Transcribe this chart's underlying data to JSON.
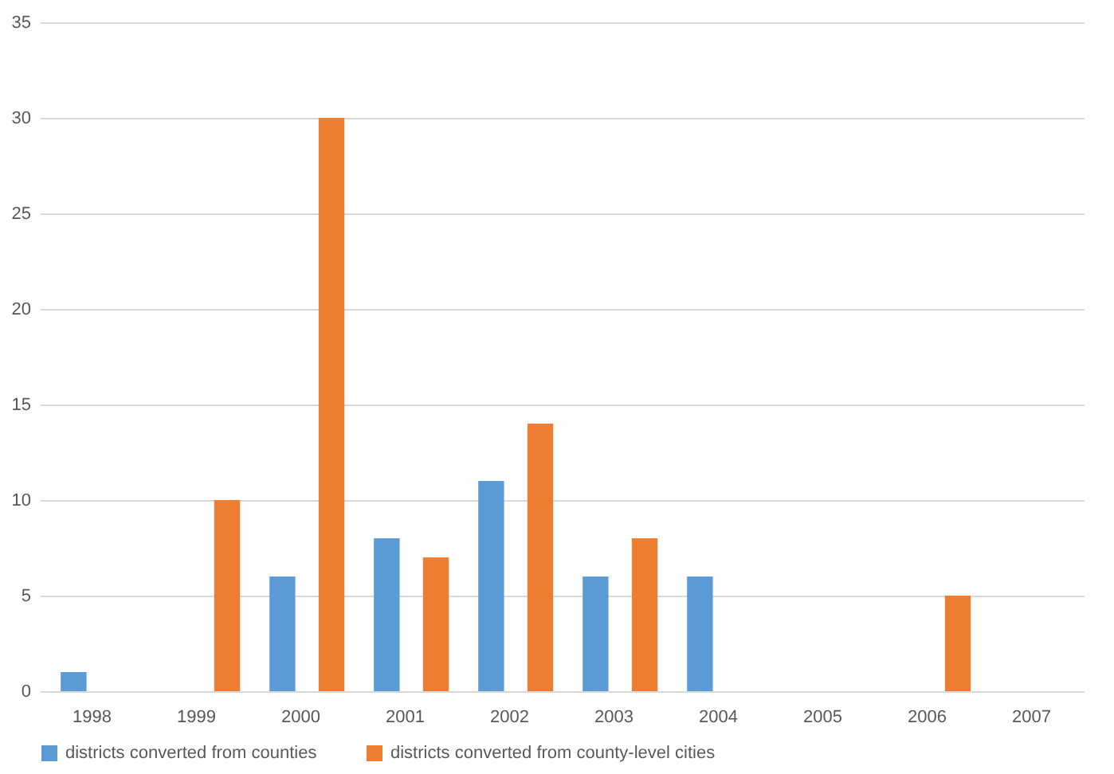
{
  "chart_data": {
    "type": "bar",
    "categories": [
      "1998",
      "1999",
      "2000",
      "2001",
      "2002",
      "2003",
      "2004",
      "2005",
      "2006",
      "2007"
    ],
    "series": [
      {
        "name": "districts converted from counties",
        "color": "#5b9bd5",
        "values": [
          1,
          null,
          6,
          8,
          11,
          6,
          6,
          null,
          null,
          null
        ]
      },
      {
        "name": "districts converted from county-level cities",
        "color": "#ed7d31",
        "values": [
          null,
          10,
          30,
          7,
          14,
          8,
          null,
          null,
          5,
          null
        ]
      }
    ],
    "ylim": [
      0,
      35
    ],
    "yticks": [
      0,
      5,
      10,
      15,
      20,
      25,
      30,
      35
    ],
    "grid": "y",
    "legend": "bottom"
  }
}
